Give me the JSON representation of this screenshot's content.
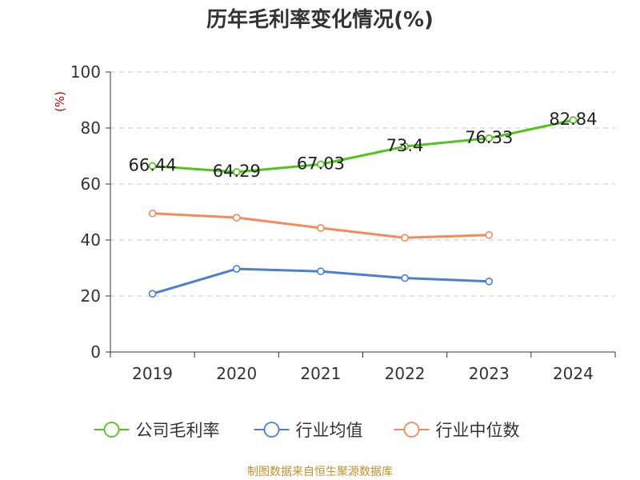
{
  "chart_data": {
    "type": "line",
    "title": "历年毛利率变化情况(%)",
    "ylabel": "(%)",
    "xlabel": "",
    "categories": [
      "2019",
      "2020",
      "2021",
      "2022",
      "2023",
      "2024"
    ],
    "ylim": [
      0,
      100
    ],
    "yticks": [
      0,
      20,
      40,
      60,
      80,
      100
    ],
    "grid": true,
    "legend_position": "bottom",
    "series": [
      {
        "name": "公司毛利率",
        "color": "#52c41a",
        "values": [
          66.44,
          64.29,
          67.03,
          73.4,
          76.33,
          82.84
        ],
        "labels": [
          "66.44",
          "64.29",
          "67.03",
          "73.4",
          "76.33",
          "82.84"
        ]
      },
      {
        "name": "行业均值",
        "color": "#4a7fd6",
        "values": [
          20.8,
          29.7,
          28.8,
          26.4,
          25.2,
          null
        ],
        "labels": null
      },
      {
        "name": "行业中位数",
        "color": "#f58a5a",
        "values": [
          49.5,
          48.0,
          44.3,
          40.8,
          41.8,
          null
        ],
        "labels": null
      }
    ]
  },
  "source_text": "制图数据来自恒生聚源数据库"
}
